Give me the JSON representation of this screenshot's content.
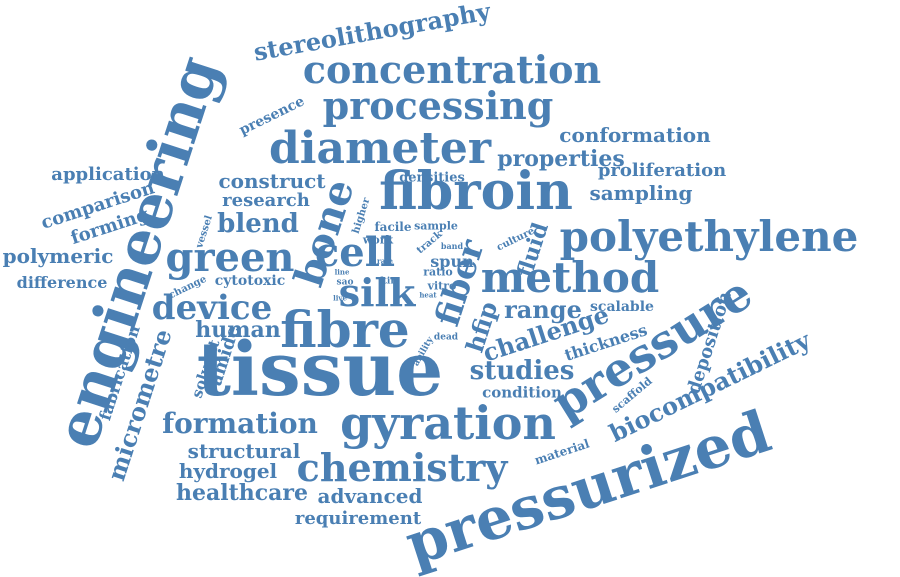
{
  "accent_color": "#4a7fb3",
  "words": [
    {
      "id": "pressurized",
      "text": "pressurized"
    },
    {
      "id": "tissue",
      "text": "tissue"
    },
    {
      "id": "engineering",
      "text": "engineering"
    },
    {
      "id": "pressure",
      "text": "pressure"
    },
    {
      "id": "fibre",
      "text": "fibre"
    },
    {
      "id": "gyration",
      "text": "gyration"
    },
    {
      "id": "fibroin",
      "text": "fibroin"
    },
    {
      "id": "polyethylene",
      "text": "polyethylene"
    },
    {
      "id": "method",
      "text": "method"
    },
    {
      "id": "chemistry",
      "text": "chemistry"
    },
    {
      "id": "diameter",
      "text": "diameter"
    },
    {
      "id": "processing",
      "text": "processing"
    },
    {
      "id": "concentration",
      "text": "concentration"
    },
    {
      "id": "bone",
      "text": "bone"
    },
    {
      "id": "fiber",
      "text": "fiber"
    },
    {
      "id": "green",
      "text": "green"
    },
    {
      "id": "cell",
      "text": "cell"
    },
    {
      "id": "silk",
      "text": "silk"
    },
    {
      "id": "device",
      "text": "device"
    },
    {
      "id": "formation",
      "text": "formation"
    },
    {
      "id": "biocompatibility",
      "text": "biocompatibility"
    },
    {
      "id": "stereolithography",
      "text": "stereolithography"
    },
    {
      "id": "micrometre",
      "text": "micrometre"
    },
    {
      "id": "studies",
      "text": "studies"
    },
    {
      "id": "challenge",
      "text": "challenge"
    },
    {
      "id": "hfip",
      "text": "hfip"
    },
    {
      "id": "range",
      "text": "range"
    },
    {
      "id": "properties",
      "text": "properties"
    },
    {
      "id": "conformation",
      "text": "conformation"
    },
    {
      "id": "construct",
      "text": "construct"
    },
    {
      "id": "blend",
      "text": "blend"
    },
    {
      "id": "human",
      "text": "human"
    },
    {
      "id": "structural",
      "text": "structural"
    },
    {
      "id": "hydrogel",
      "text": "hydrogel"
    },
    {
      "id": "healthcare",
      "text": "healthcare"
    },
    {
      "id": "advanced",
      "text": "advanced"
    },
    {
      "id": "requirement",
      "text": "requirement"
    },
    {
      "id": "application",
      "text": "application"
    },
    {
      "id": "comparison",
      "text": "comparison"
    },
    {
      "id": "forming",
      "text": "forming"
    },
    {
      "id": "polymeric",
      "text": "polymeric"
    },
    {
      "id": "difference",
      "text": "difference"
    },
    {
      "id": "research",
      "text": "research"
    },
    {
      "id": "sampling",
      "text": "sampling"
    },
    {
      "id": "proliferation",
      "text": "proliferation"
    },
    {
      "id": "deposition",
      "text": "deposition"
    },
    {
      "id": "thickness",
      "text": "thickness"
    },
    {
      "id": "condition",
      "text": "condition"
    },
    {
      "id": "amide",
      "text": "amide"
    },
    {
      "id": "fabrication",
      "text": "fabrication"
    },
    {
      "id": "solvent",
      "text": "solvent"
    },
    {
      "id": "fluid",
      "text": "fluid"
    },
    {
      "id": "spun",
      "text": "spun"
    },
    {
      "id": "scalable",
      "text": "scalable"
    },
    {
      "id": "cytotoxic",
      "text": "cytotoxic"
    },
    {
      "id": "presence",
      "text": "presence"
    },
    {
      "id": "densities",
      "text": "densities"
    },
    {
      "id": "facile",
      "text": "facile"
    },
    {
      "id": "sample",
      "text": "sample"
    },
    {
      "id": "work",
      "text": "work"
    },
    {
      "id": "higher",
      "text": "higher"
    },
    {
      "id": "vessel",
      "text": "vessel"
    },
    {
      "id": "culture",
      "text": "culture"
    },
    {
      "id": "ratio",
      "text": "ratio"
    },
    {
      "id": "vitro",
      "text": "vitro"
    },
    {
      "id": "track",
      "text": "track"
    },
    {
      "id": "band",
      "text": "band"
    },
    {
      "id": "rate",
      "text": "rate"
    },
    {
      "id": "line",
      "text": "line"
    },
    {
      "id": "sao",
      "text": "sao"
    },
    {
      "id": "ftir",
      "text": "ftir"
    },
    {
      "id": "live",
      "text": "live"
    },
    {
      "id": "heat",
      "text": "heat"
    },
    {
      "id": "ability",
      "text": "ability"
    },
    {
      "id": "dead",
      "text": "dead"
    },
    {
      "id": "change",
      "text": "change"
    },
    {
      "id": "scaffold",
      "text": "scaffold"
    },
    {
      "id": "material",
      "text": "material"
    }
  ]
}
